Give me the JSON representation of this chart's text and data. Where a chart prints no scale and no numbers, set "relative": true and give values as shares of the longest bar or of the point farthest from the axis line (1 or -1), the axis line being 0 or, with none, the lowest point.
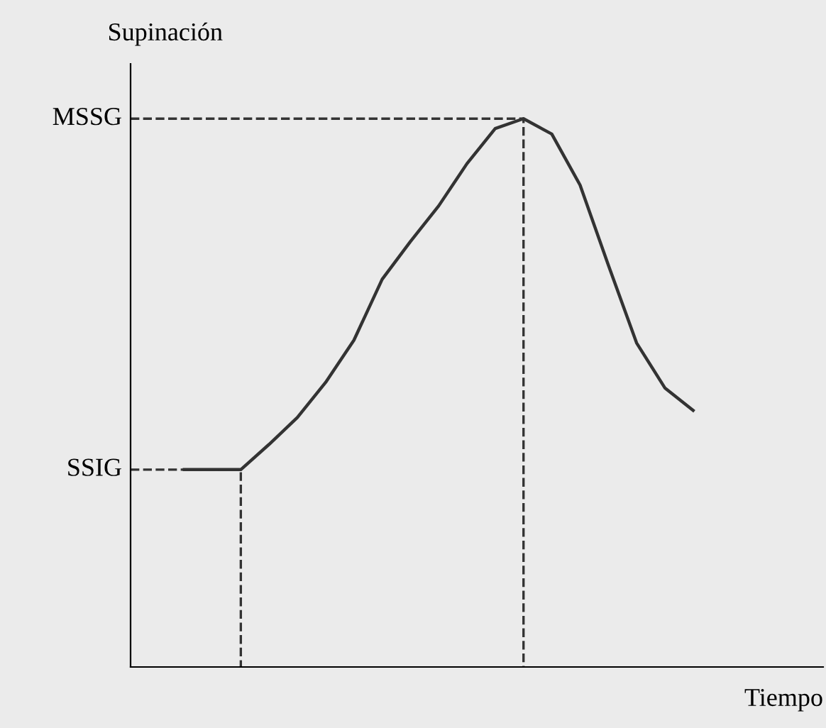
{
  "chart_data": {
    "type": "line",
    "relative": true,
    "xlabel": "Tiempo",
    "ylabel": "Supinación",
    "categories": [
      null,
      null,
      null,
      null,
      null,
      null,
      null,
      null,
      null,
      null,
      null,
      null,
      null,
      null,
      null,
      null,
      null,
      null,
      null
    ],
    "series": [
      {
        "color": "#333333",
        "values": [
          0.36,
          0.36,
          0.36,
          0.406,
          0.455,
          0.519,
          0.596,
          0.707,
          0.776,
          0.841,
          0.918,
          0.982,
          1,
          0.972,
          0.879,
          0.733,
          0.591,
          0.509,
          0.468
        ]
      }
    ],
    "ref_lines": [
      {
        "axis": "y",
        "value": 0.36,
        "label": "SSIG",
        "line_style": "dashed",
        "color": "#333333"
      },
      {
        "axis": "y",
        "value": 1,
        "label": "MSSG",
        "line_style": "dashed",
        "color": "#333333"
      }
    ],
    "grid": false,
    "legend": false,
    "marker": "none",
    "line_style": "solid"
  }
}
